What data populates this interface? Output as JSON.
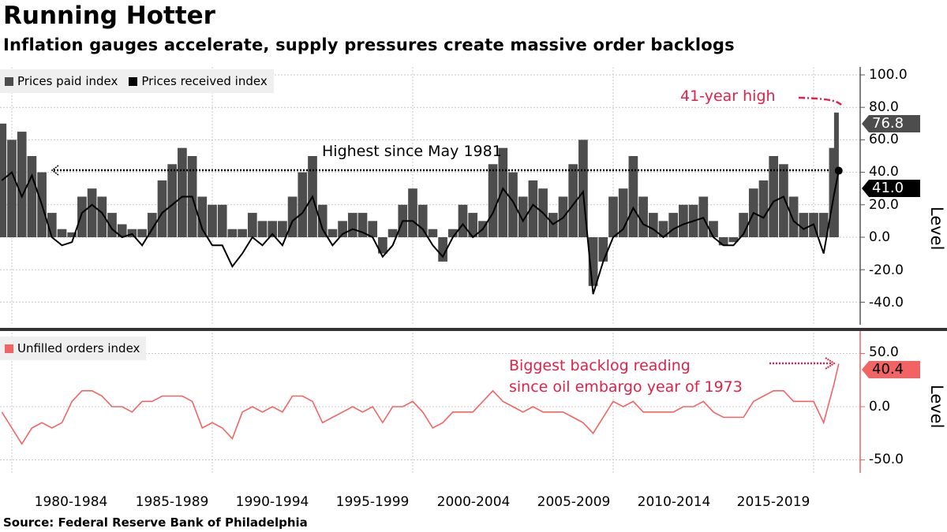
{
  "title": "Running Hotter",
  "subtitle": "Inflation gauges accelerate, supply pressures create massive order backlogs",
  "source": "Source: Federal Reserve Bank of Philadelphia",
  "colors": {
    "prices_paid": "#4d4d4d",
    "prices_received": "#000000",
    "unfilled_orders": "#f26464",
    "annotation": "#e0224a"
  },
  "chart_data": [
    {
      "type": "bar+line",
      "legend_placement": "top-left",
      "grid": true,
      "ylabel": "Level",
      "ylim": [
        -50,
        105
      ],
      "yticks": [
        "100.0",
        "80.0",
        "60.0",
        "40.0",
        "20.0",
        "0.0",
        "-20.0",
        "-40.0"
      ],
      "x": [
        1979.5,
        1980,
        1980.5,
        1981,
        1981.5,
        1982,
        1982.5,
        1983,
        1983.5,
        1984,
        1984.5,
        1985,
        1985.5,
        1986,
        1986.5,
        1987,
        1987.5,
        1988,
        1988.5,
        1989,
        1989.5,
        1990,
        1990.5,
        1991,
        1991.5,
        1992,
        1992.5,
        1993,
        1993.5,
        1994,
        1994.5,
        1995,
        1995.5,
        1996,
        1996.5,
        1997,
        1997.5,
        1998,
        1998.5,
        1999,
        1999.5,
        2000,
        2000.5,
        2001,
        2001.5,
        2002,
        2002.5,
        2003,
        2003.5,
        2004,
        2004.5,
        2005,
        2005.5,
        2006,
        2006.5,
        2007,
        2007.5,
        2008,
        2008.5,
        2009,
        2009.5,
        2010,
        2010.5,
        2011,
        2011.5,
        2012,
        2012.5,
        2013,
        2013.5,
        2014,
        2014.5,
        2015,
        2015.5,
        2016,
        2016.5,
        2017,
        2017.5,
        2018,
        2018.5,
        2019,
        2019.5,
        2020,
        2020.5,
        2021,
        2021.25
      ],
      "series": [
        {
          "name": "Prices paid index",
          "kind": "bar",
          "values": [
            70,
            60,
            65,
            50,
            40,
            15,
            5,
            3,
            25,
            30,
            25,
            15,
            8,
            5,
            5,
            15,
            35,
            45,
            55,
            50,
            25,
            20,
            20,
            5,
            5,
            15,
            10,
            10,
            10,
            25,
            40,
            50,
            20,
            5,
            10,
            15,
            15,
            10,
            -10,
            5,
            20,
            30,
            20,
            5,
            -15,
            5,
            20,
            15,
            10,
            45,
            55,
            40,
            25,
            35,
            30,
            15,
            25,
            45,
            60,
            -30,
            -15,
            25,
            30,
            50,
            25,
            15,
            10,
            15,
            20,
            20,
            25,
            10,
            -5,
            -3,
            15,
            30,
            35,
            50,
            45,
            25,
            15,
            15,
            15,
            55,
            76.8
          ]
        },
        {
          "name": "Prices received index",
          "kind": "line",
          "values": [
            35,
            40,
            25,
            38,
            20,
            0,
            -5,
            -3,
            15,
            20,
            15,
            5,
            0,
            2,
            -5,
            5,
            15,
            20,
            25,
            25,
            5,
            -5,
            -5,
            -18,
            -10,
            0,
            -5,
            2,
            -5,
            10,
            15,
            25,
            5,
            -5,
            2,
            5,
            3,
            0,
            -12,
            -5,
            10,
            10,
            5,
            -5,
            -12,
            0,
            8,
            0,
            5,
            15,
            30,
            22,
            10,
            20,
            15,
            8,
            12,
            20,
            28,
            -35,
            -15,
            0,
            5,
            18,
            8,
            5,
            0,
            5,
            8,
            10,
            12,
            0,
            -5,
            -5,
            2,
            15,
            12,
            22,
            25,
            10,
            5,
            8,
            -10,
            25,
            41.0
          ]
        }
      ],
      "last_value_tags": [
        "76.8",
        "41.0"
      ],
      "annotations": {
        "highest": "Highest since May 1981",
        "high41": "41-year high"
      }
    },
    {
      "type": "line",
      "legend_placement": "top-left",
      "grid": true,
      "ylabel": "Level",
      "ylim": [
        -62,
        55
      ],
      "yticks": [
        "50.0",
        "0.0",
        "-50.0"
      ],
      "series": [
        {
          "name": "Unfilled orders index",
          "values": [
            -5,
            -20,
            -35,
            -20,
            -15,
            -20,
            -15,
            5,
            15,
            15,
            10,
            0,
            0,
            -5,
            5,
            5,
            10,
            10,
            10,
            5,
            -20,
            -15,
            -20,
            -30,
            -5,
            0,
            -5,
            0,
            -5,
            10,
            10,
            5,
            -15,
            -10,
            -5,
            0,
            -5,
            0,
            -15,
            0,
            0,
            5,
            -5,
            -20,
            -15,
            -5,
            -5,
            -5,
            5,
            15,
            5,
            0,
            -5,
            0,
            -5,
            -5,
            -5,
            -10,
            -15,
            -25,
            -10,
            5,
            0,
            5,
            -5,
            -5,
            -5,
            -5,
            0,
            0,
            5,
            -5,
            -10,
            -10,
            -10,
            5,
            10,
            15,
            15,
            5,
            5,
            5,
            -15,
            20,
            40.4
          ]
        }
      ],
      "last_value_tags": [
        "40.4"
      ],
      "annotations": {
        "backlog_line1": "Biggest backlog reading",
        "backlog_line2": "since oil embargo year of 1973"
      }
    }
  ],
  "x_axis": {
    "tick_labels": [
      "1980-1984",
      "1985-1989",
      "1990-1994",
      "1995-1999",
      "2000-2004",
      "2005-2009",
      "2010-2014",
      "2015-2019"
    ]
  }
}
